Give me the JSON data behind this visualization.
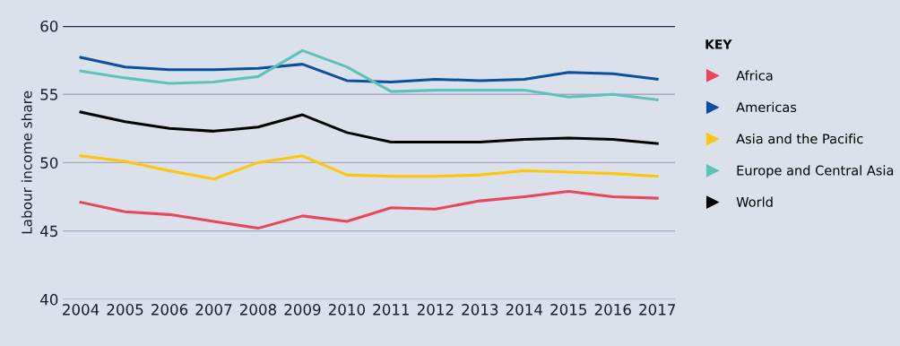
{
  "chart_data": {
    "type": "line",
    "ylabel": "Labour income share",
    "legend_title": "KEY",
    "x": [
      2004,
      2005,
      2006,
      2007,
      2008,
      2009,
      2010,
      2011,
      2012,
      2013,
      2014,
      2015,
      2016,
      2017
    ],
    "series": [
      {
        "name": "Africa",
        "color": "#e8475a",
        "values": [
          47.1,
          46.4,
          46.2,
          45.7,
          45.2,
          46.1,
          45.7,
          46.7,
          46.6,
          47.2,
          47.5,
          47.9,
          47.5,
          47.4
        ]
      },
      {
        "name": "Americas",
        "color": "#0d4f9e",
        "values": [
          57.7,
          57.0,
          56.8,
          56.8,
          56.9,
          57.2,
          56.0,
          55.9,
          56.1,
          56.0,
          56.1,
          56.6,
          56.5,
          56.1
        ]
      },
      {
        "name": "Asia and the Pacific",
        "color": "#fdc60b",
        "values": [
          50.5,
          50.1,
          49.4,
          48.8,
          50.0,
          50.5,
          49.1,
          49.0,
          49.0,
          49.1,
          49.4,
          49.3,
          49.2,
          49.0
        ]
      },
      {
        "name": "Europe and Central Asia",
        "color": "#5cc3bb",
        "values": [
          56.7,
          56.2,
          55.8,
          55.9,
          56.3,
          58.2,
          57.0,
          55.2,
          55.3,
          55.3,
          55.3,
          54.8,
          55.0,
          54.6
        ]
      },
      {
        "name": "World",
        "color": "#000000",
        "values": [
          53.7,
          53.0,
          52.5,
          52.3,
          52.6,
          53.5,
          52.2,
          51.5,
          51.5,
          51.5,
          51.7,
          51.8,
          51.7,
          51.4
        ]
      }
    ],
    "xlim": [
      2003.6,
      2017.4
    ],
    "xticks": [
      2004,
      2005,
      2006,
      2007,
      2008,
      2009,
      2010,
      2011,
      2012,
      2013,
      2014,
      2015,
      2016,
      2017
    ],
    "ylim": [
      40,
      60
    ],
    "yticks": [
      40,
      45,
      50,
      55,
      60
    ],
    "grid": "y",
    "legend": "right",
    "marker": "none",
    "line_style": "solid"
  }
}
